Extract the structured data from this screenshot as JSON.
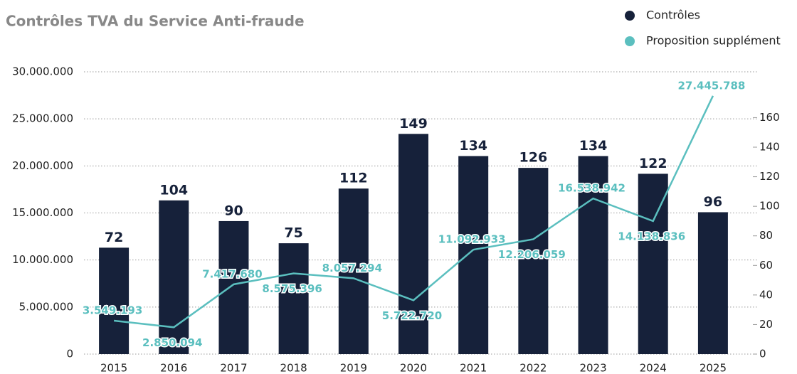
{
  "chart_data": {
    "type": "bar",
    "title": "Contrôles TVA du Service Anti-fraude",
    "categories": [
      "2015",
      "2016",
      "2017",
      "2018",
      "2019",
      "2020",
      "2021",
      "2022",
      "2023",
      "2024",
      "2025"
    ],
    "series": [
      {
        "name": "Contrôles",
        "color": "#16213a",
        "type": "bar",
        "axis": "y2",
        "values": [
          72,
          104,
          90,
          75,
          112,
          149,
          134,
          126,
          134,
          122,
          96
        ]
      },
      {
        "name": "Proposition supplément",
        "color": "#5bbfbf",
        "type": "line",
        "axis": "y",
        "values": [
          3549193,
          2850094,
          7417680,
          8575396,
          8057294,
          5722720,
          11092933,
          12206059,
          16538942,
          14138836,
          27445788
        ],
        "value_labels": [
          "3.549.193",
          "2.850.094",
          "7.417.680",
          "8.575.396",
          "8.057.294",
          "5.722.720",
          "11.092.933",
          "12.206.059",
          "16.538.942",
          "14.138.836",
          "27.445.788"
        ]
      }
    ],
    "ylim": [
      0,
      30000000
    ],
    "yticks": [
      {
        "value": 0,
        "label": "0"
      },
      {
        "value": 5000000,
        "label": "5.000.000"
      },
      {
        "value": 10000000,
        "label": "10.000.000"
      },
      {
        "value": 15000000,
        "label": "15.000.000"
      },
      {
        "value": 20000000,
        "label": "20.000.000"
      },
      {
        "value": 25000000,
        "label": "25.000.000"
      },
      {
        "value": 30000000,
        "label": "30.000.000"
      }
    ],
    "y2lim": [
      0,
      191
    ],
    "y2ticks": [
      0,
      20,
      40,
      60,
      80,
      100,
      120,
      140,
      160
    ],
    "grid": true
  }
}
